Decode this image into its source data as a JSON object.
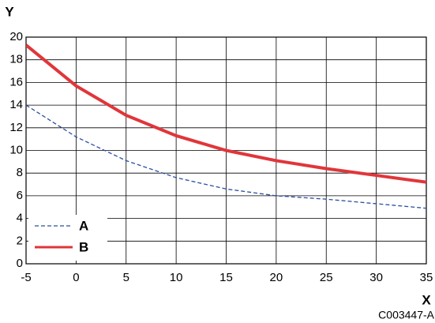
{
  "chart_data": {
    "type": "line",
    "x_label": "X",
    "y_label": "Y",
    "figure_id": "C003447-A",
    "x": [
      -5,
      0,
      5,
      10,
      15,
      20,
      25,
      30,
      35
    ],
    "series": [
      {
        "name": "A",
        "color": "#2b4f9e",
        "line_style": "dashed",
        "values": [
          14,
          11.2,
          9.1,
          7.6,
          6.6,
          6.0,
          5.7,
          5.3,
          4.9
        ]
      },
      {
        "name": "B",
        "color": "#e0363a",
        "line_style": "solid",
        "values": [
          19.3,
          15.7,
          13.1,
          11.3,
          10.0,
          9.1,
          8.4,
          7.8,
          7.2
        ]
      }
    ],
    "xlim": [
      -5,
      35
    ],
    "xticks": [
      -5,
      0,
      5,
      10,
      15,
      20,
      25,
      30,
      35
    ],
    "ylim": [
      0,
      20
    ],
    "yticks": [
      0,
      2,
      4,
      6,
      8,
      10,
      12,
      14,
      16,
      18,
      20
    ],
    "grid": true,
    "legend": "lower left"
  }
}
